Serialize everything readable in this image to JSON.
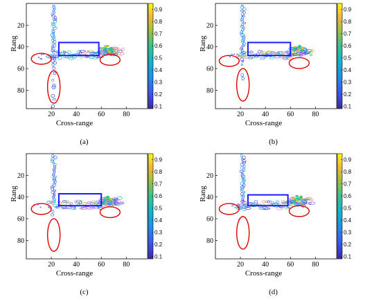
{
  "chart_data": [
    {
      "type": "heatmap",
      "caption": "(a)",
      "xlabel": "Cross-range",
      "ylabel": "Rang",
      "xticks": [
        20,
        40,
        60,
        80
      ],
      "yticks": [
        20,
        40,
        60,
        80
      ],
      "xlim": [
        0,
        97
      ],
      "ylim": [
        97,
        0
      ],
      "colorbar": {
        "ticks": [
          "0.1",
          "0.2",
          "0.3",
          "0.4",
          "0.5",
          "0.6",
          "0.7",
          "0.8",
          "0.9"
        ],
        "range": [
          0.08,
          0.95
        ]
      },
      "rectangle": {
        "x": [
          26,
          58
        ],
        "y": [
          36,
          48
        ],
        "color": "#1a1aff"
      },
      "ellipses": [
        {
          "cx": 12,
          "cy": 51,
          "rx": 8,
          "ry": 5,
          "color": "#e00000"
        },
        {
          "cx": 22,
          "cy": 77,
          "rx": 5,
          "ry": 15,
          "color": "#e00000"
        },
        {
          "cx": 67,
          "cy": 52,
          "rx": 8,
          "ry": 5,
          "color": "#e00000"
        }
      ]
    },
    {
      "type": "heatmap",
      "caption": "(b)",
      "xlabel": "Cross-range",
      "ylabel": "Rang",
      "xticks": [
        20,
        40,
        60,
        80
      ],
      "yticks": [
        20,
        40,
        60,
        80
      ],
      "xlim": [
        0,
        97
      ],
      "ylim": [
        97,
        0
      ],
      "colorbar": {
        "ticks": [
          "0.1",
          "0.2",
          "0.3",
          "0.4",
          "0.5",
          "0.6",
          "0.7",
          "0.8",
          "0.9"
        ],
        "range": [
          0.08,
          0.95
        ]
      },
      "rectangle": {
        "x": [
          26,
          60
        ],
        "y": [
          36,
          48
        ],
        "color": "#1a1aff"
      },
      "ellipses": [
        {
          "cx": 11,
          "cy": 53,
          "rx": 8,
          "ry": 5,
          "color": "#e00000"
        },
        {
          "cx": 22,
          "cy": 75,
          "rx": 5,
          "ry": 15,
          "color": "#e00000"
        },
        {
          "cx": 67,
          "cy": 55,
          "rx": 8,
          "ry": 5,
          "color": "#e00000"
        }
      ]
    },
    {
      "type": "heatmap",
      "caption": "(c)",
      "xlabel": "Cross-range",
      "ylabel": "Rang",
      "xticks": [
        20,
        40,
        60,
        80
      ],
      "yticks": [
        20,
        40,
        60,
        80
      ],
      "xlim": [
        0,
        97
      ],
      "ylim": [
        97,
        0
      ],
      "colorbar": {
        "ticks": [
          "0.1",
          "0.2",
          "0.3",
          "0.4",
          "0.5",
          "0.6",
          "0.7",
          "0.8",
          "0.9"
        ],
        "range": [
          0.08,
          0.95
        ]
      },
      "rectangle": {
        "x": [
          26,
          60
        ],
        "y": [
          37,
          48
        ],
        "color": "#1a1aff"
      },
      "ellipses": [
        {
          "cx": 12,
          "cy": 51,
          "rx": 8,
          "ry": 5,
          "color": "#e00000"
        },
        {
          "cx": 22,
          "cy": 75,
          "rx": 5,
          "ry": 15,
          "color": "#e00000"
        },
        {
          "cx": 67,
          "cy": 54,
          "rx": 8,
          "ry": 5,
          "color": "#e00000"
        }
      ]
    },
    {
      "type": "heatmap",
      "caption": "(d)",
      "xlabel": "Cross-range",
      "ylabel": "Rang",
      "xticks": [
        20,
        40,
        60,
        80
      ],
      "yticks": [
        20,
        40,
        60,
        80
      ],
      "xlim": [
        0,
        97
      ],
      "ylim": [
        97,
        0
      ],
      "colorbar": {
        "ticks": [
          "0.1",
          "0.2",
          "0.3",
          "0.4",
          "0.5",
          "0.6",
          "0.7",
          "0.8",
          "0.9"
        ],
        "range": [
          0.08,
          0.95
        ]
      },
      "rectangle": {
        "x": [
          26,
          58
        ],
        "y": [
          38,
          48
        ],
        "color": "#1a1aff"
      },
      "ellipses": [
        {
          "cx": 11,
          "cy": 51,
          "rx": 8,
          "ry": 5,
          "color": "#e00000"
        },
        {
          "cx": 22,
          "cy": 73,
          "rx": 5,
          "ry": 15,
          "color": "#e00000"
        },
        {
          "cx": 67,
          "cy": 53,
          "rx": 8,
          "ry": 5,
          "color": "#e00000"
        }
      ]
    }
  ]
}
